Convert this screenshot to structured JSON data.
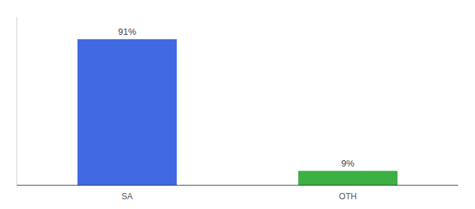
{
  "chart_data": {
    "type": "bar",
    "categories": [
      "SA",
      "OTH"
    ],
    "values": [
      91,
      9
    ],
    "value_labels": [
      "91%",
      "9%"
    ],
    "colors": [
      "#4169e1",
      "#3cb043"
    ],
    "ylim": [
      0,
      105
    ],
    "data_labels": true,
    "tick_labels": "x",
    "grid": false
  }
}
